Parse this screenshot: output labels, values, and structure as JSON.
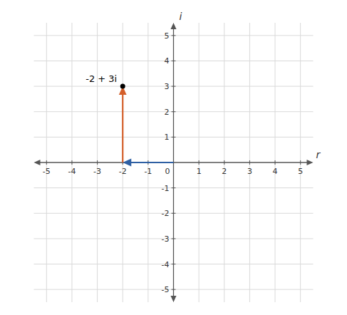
{
  "chart_data": {
    "type": "vector",
    "xlabel": "r",
    "ylabel": "i",
    "xlim": [
      -5.5,
      5.5
    ],
    "ylim": [
      -5.5,
      5.5
    ],
    "xticks": [
      -5,
      -4,
      -3,
      -2,
      -1,
      0,
      1,
      2,
      3,
      4,
      5
    ],
    "yticks": [
      -5,
      -4,
      -3,
      -2,
      -1,
      1,
      2,
      3,
      4,
      5
    ],
    "grid": true,
    "vectors": [
      {
        "x": 0,
        "y": 0,
        "dx": -2,
        "dy": 0,
        "color": "#2e5fa3"
      },
      {
        "x": -2,
        "y": 0,
        "dx": 0,
        "dy": 3,
        "color": "#d45f2a"
      }
    ],
    "points": [
      {
        "x": -2,
        "y": 3,
        "label": "-2 + 3i",
        "color": "#000000"
      }
    ]
  }
}
